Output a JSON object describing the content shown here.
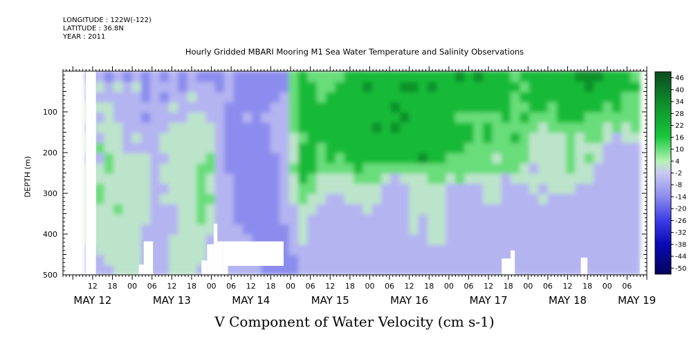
{
  "header": {
    "longitude": "LONGITUDE : 122W(-122)",
    "latitude": "LATITUDE : 36.8N",
    "year": "YEAR : 2011"
  },
  "chart_data": {
    "type": "heatmap",
    "title": "Hourly Gridded MBARI Mooring M1 Sea Water Temperature and Salinity Observations",
    "xlabel": "V Component of Water Velocity (cm s-1)",
    "ylabel": "DEPTH (m)",
    "ylim": [
      500,
      0
    ],
    "y_ticks": [
      100,
      200,
      300,
      400,
      500
    ],
    "x_hour_ticks": [
      {
        "label": "12",
        "hours": 12
      },
      {
        "label": "18",
        "hours": 18
      },
      {
        "label": "00",
        "hours": 24
      },
      {
        "label": "06",
        "hours": 30
      },
      {
        "label": "12",
        "hours": 36
      },
      {
        "label": "18",
        "hours": 42
      },
      {
        "label": "00",
        "hours": 48
      },
      {
        "label": "06",
        "hours": 54
      },
      {
        "label": "12",
        "hours": 60
      },
      {
        "label": "18",
        "hours": 66
      },
      {
        "label": "00",
        "hours": 72
      },
      {
        "label": "06",
        "hours": 78
      },
      {
        "label": "12",
        "hours": 84
      },
      {
        "label": "18",
        "hours": 90
      },
      {
        "label": "00",
        "hours": 96
      },
      {
        "label": "06",
        "hours": 102
      },
      {
        "label": "12",
        "hours": 108
      },
      {
        "label": "18",
        "hours": 114
      },
      {
        "label": "00",
        "hours": 120
      },
      {
        "label": "06",
        "hours": 126
      },
      {
        "label": "12",
        "hours": 132
      },
      {
        "label": "18",
        "hours": 138
      },
      {
        "label": "00",
        "hours": 144
      },
      {
        "label": "06",
        "hours": 150
      },
      {
        "label": "12",
        "hours": 156
      },
      {
        "label": "18",
        "hours": 162
      },
      {
        "label": "00",
        "hours": 168
      },
      {
        "label": "06",
        "hours": 174
      }
    ],
    "x_day_labels": [
      {
        "label": "MAY 12",
        "hours": 12
      },
      {
        "label": "MAY 13",
        "hours": 36
      },
      {
        "label": "MAY 14",
        "hours": 60
      },
      {
        "label": "MAY 15",
        "hours": 84
      },
      {
        "label": "MAY 16",
        "hours": 108
      },
      {
        "label": "MAY 17",
        "hours": 132
      },
      {
        "label": "MAY 18",
        "hours": 156
      },
      {
        "label": "MAY 19",
        "hours": 177
      }
    ],
    "x_range_hours": [
      3,
      180
    ],
    "colorbar": {
      "labels": [
        "46",
        "40",
        "34",
        "28",
        "22",
        "16",
        "10",
        "4",
        "-2",
        "-8",
        "-14",
        "-20",
        "-26",
        "-32",
        "-38",
        "-44",
        "-50"
      ],
      "max": 49,
      "min": -53,
      "stops": [
        {
          "value": 49,
          "color": "#0d4a1e"
        },
        {
          "value": 34,
          "color": "#0d8a2a"
        },
        {
          "value": 16,
          "color": "#19c83c"
        },
        {
          "value": 4,
          "color": "#b6f2b6"
        },
        {
          "value": -2,
          "color": "#c8c8f2"
        },
        {
          "value": -14,
          "color": "#8c8cee"
        },
        {
          "value": -26,
          "color": "#3c3ce6"
        },
        {
          "value": -38,
          "color": "#0a0ab4"
        },
        {
          "value": -53,
          "color": "#03035a"
        }
      ]
    },
    "field": {
      "cols": 60,
      "depths": [
        15,
        40,
        65,
        90,
        115,
        140,
        165,
        190,
        215,
        240,
        265,
        290,
        315,
        340,
        365,
        390,
        415,
        440,
        465,
        490
      ],
      "hour_start": 10,
      "hour_end": 178,
      "rows": [
        "ABABABABABABAAABAAAAAADEDDDDEEEEEEEEEEEEFEFEEEDEEEEEEFFFEEED",
        "BCBCBCABBBABBBABAAAAAADEEDDEEEFEEEFFEFEEEEEEEEEDEEEEEEFEEEEE",
        "BBBBBBABABBCBBBBAAAAABDEEDEEEEEEEEEEEEEEEEEEEEDEEEEEEEEEEEDD",
        "CCCBBBBBBCBBBBBAAAAABBDEEEEEEEEEEFEEEEEEEEEEEEDDEEDEEEEEDEDD",
        "CBCBBBABBBBCCBBAABABBBDEEEEEEEEEEEFEEEEEDDDDDEDEDDDEEEDDDDDD",
        "BCCCBBBBBCCCCCBAAAAABBDEEEEEEEEFEFEEEEEEEEDEDDDDDCDDDDDDCDCD",
        "CBCCBCBBCCCCCCBAAAAABBCDEEEEEEEEEEEEEEEEEEDEDDEDCCCCDCDDCBCC",
        "CDCCBBBBCCCCCCBAAAAABBCEEDEEEEEEEEEEEEEEEDDDDDDDCCCCDCCCBBBB",
        "BBDCCCCBBCCCCDBAAAAAABCEEDEDEEEEEEEEFEEDDDDDCDDDCCCCDCDCBBBB",
        "CCDCCCCBCCCCDDBAAAAAABDEEDDDDEDDDDDDDDDDDDDDDDDCBCCCDCCBBBBB",
        "CCCCCCCBCCCCDCBBAAAAABCEDCCCCDDDCBCCCDDCDCCCCBCCCCCCCCCBBBBB",
        "CDCCCCCBBCCCDCBBAAAAABCDDCCCCCCCBBBCCCCBBBBCCBBBCBCCCBBBBBBB",
        "CDCCCCCBCCCCDDBBAAAAABCDCCBBCCCCBBBCCCCBBBBCCBBBBCBBBBBBBBBB",
        "CCCDCCCBBBCCDCBBAAAAABBCCBBBBBCBBBBCCCCBBBBBBBBBBBBBBBBBBBBB",
        "CCCCCCCBBBCCDCBBAAAAABBCBBBBBBBBBBBCBCCBBBBBBBBBBBBBBBBBBBBB",
        "CCCCCCBBBBCCCCBBBAAAAABCBBBBBBBBBBBCBCCBBBBBBBBBBBBBBBBBBBBB",
        "CCCCCCBBBCCCCBBBBBAAAABCBBBBBBBBBBBBBCCBBBBBBBBBBBBBBBBBBBBB",
        "BCCCCCBBBCCCCBBBBBAAAABBBBBBBBBBBBBBBBBBBBBBBBBBBBBBBBBBBBBB",
        "BBCCCCBBBCCCCBBBBBBAAAABBBBBBBBBBBBBBBBBBBBBBBBBBBBBBBBBBBBB",
        "BBBCCCBBBCCCBBBBBBBAAAABBBBBBBBBBBBBBBBBBBBBBBBBBBBBBBBBBBBB"
      ],
      "level_values": [
        -14,
        -6,
        2,
        10,
        20,
        32
      ]
    },
    "missing_regions": [
      {
        "hour_from": 10,
        "hour_to": 13,
        "depth_from": 0,
        "depth_to": 500
      },
      {
        "hour_from": 26,
        "hour_to": 27.5,
        "depth_from": 475,
        "depth_to": 500
      },
      {
        "hour_from": 27.5,
        "hour_to": 30.3,
        "depth_from": 418,
        "depth_to": 500
      },
      {
        "hour_from": 45,
        "hour_to": 46.7,
        "depth_from": 465,
        "depth_to": 500
      },
      {
        "hour_from": 46.7,
        "hour_to": 48.7,
        "depth_from": 425,
        "depth_to": 500
      },
      {
        "hour_from": 48.7,
        "hour_to": 49.8,
        "depth_from": 375,
        "depth_to": 500
      },
      {
        "hour_from": 49.8,
        "hour_to": 51.6,
        "depth_from": 418,
        "depth_to": 500
      },
      {
        "hour_from": 51.6,
        "hour_to": 69.9,
        "depth_from": 418,
        "depth_to": 478
      },
      {
        "hour_from": 51.6,
        "hour_to": 53,
        "depth_from": 478,
        "depth_to": 500
      },
      {
        "hour_from": 136,
        "hour_to": 138.7,
        "depth_from": 460,
        "depth_to": 500
      },
      {
        "hour_from": 138.7,
        "hour_to": 140,
        "depth_from": 440,
        "depth_to": 500
      },
      {
        "hour_from": 160,
        "hour_to": 162,
        "depth_from": 458,
        "depth_to": 500
      },
      {
        "hour_from": 178,
        "hour_to": 181,
        "depth_from": 460,
        "depth_to": 500
      }
    ]
  }
}
